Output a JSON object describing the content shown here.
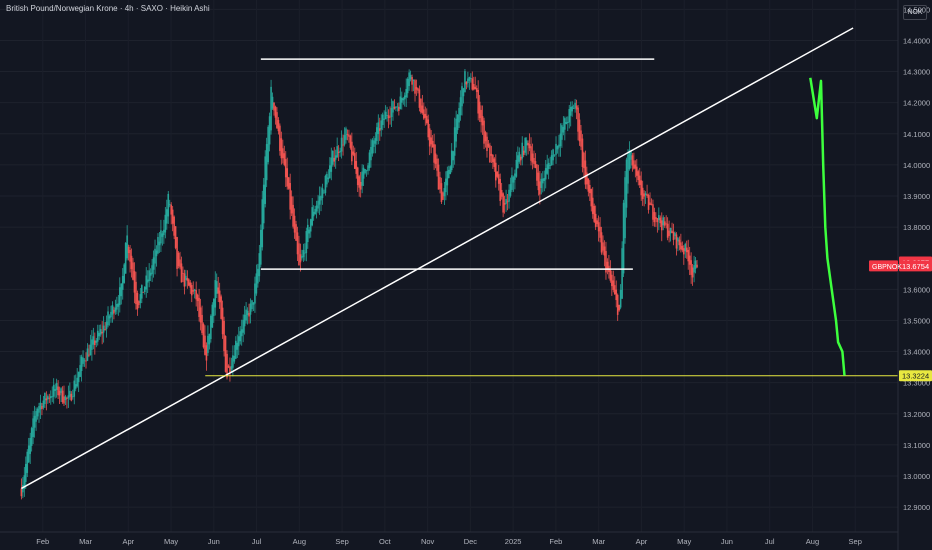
{
  "header": {
    "title": "British Pound/Norwegian Krone · 4h · SAXO · Heikin Ashi",
    "currency_button": "NOK"
  },
  "colors": {
    "background": "#131722",
    "up": "#26a69a",
    "down": "#ef5350",
    "projection": "#3dff3d",
    "support": "#e8e840",
    "lines": "#ffffff",
    "axis_text": "#b2b5be",
    "label_red": "#f23645"
  },
  "chart_data": {
    "type": "candlestick",
    "symbol": "GBPNOK",
    "ylim": [
      12.82,
      14.53
    ],
    "y_ticks": [
      "14.5000",
      "14.4000",
      "14.3000",
      "14.2000",
      "14.1000",
      "14.0000",
      "13.9000",
      "13.8000",
      "13.6000",
      "13.5000",
      "13.4000",
      "13.3000",
      "13.2000",
      "13.1000",
      "13.0000",
      "12.9000"
    ],
    "x_ticks": [
      "Feb",
      "Mar",
      "Apr",
      "May",
      "Jun",
      "Jul",
      "Aug",
      "Sep",
      "Oct",
      "Nov",
      "Dec",
      "2025",
      "Feb",
      "Mar",
      "Apr",
      "May",
      "Jun",
      "Jul",
      "Aug",
      "Sep"
    ],
    "x_tick_pos": [
      0.5,
      1.5,
      2.5,
      3.5,
      4.5,
      5.5,
      6.5,
      7.5,
      8.5,
      9.5,
      10.5,
      11.5,
      12.5,
      13.5,
      14.5,
      15.5,
      16.5,
      17.5,
      18.5,
      19.5
    ],
    "x_range": [
      -0.5,
      20.5
    ],
    "price_keypoints": [
      [
        0.0,
        12.96
      ],
      [
        0.35,
        13.22
      ],
      [
        0.8,
        13.28
      ],
      [
        1.1,
        13.24
      ],
      [
        1.45,
        13.38
      ],
      [
        1.9,
        13.47
      ],
      [
        2.35,
        13.6
      ],
      [
        2.45,
        13.79
      ],
      [
        2.7,
        13.55
      ],
      [
        3.0,
        13.65
      ],
      [
        3.35,
        13.82
      ],
      [
        3.45,
        13.9
      ],
      [
        3.65,
        13.66
      ],
      [
        4.1,
        13.57
      ],
      [
        4.3,
        13.36
      ],
      [
        4.55,
        13.65
      ],
      [
        4.8,
        13.32
      ],
      [
        5.1,
        13.47
      ],
      [
        5.4,
        13.55
      ],
      [
        5.55,
        13.68
      ],
      [
        5.65,
        13.92
      ],
      [
        5.85,
        14.25
      ],
      [
        6.0,
        14.1
      ],
      [
        6.25,
        13.9
      ],
      [
        6.5,
        13.66
      ],
      [
        6.8,
        13.85
      ],
      [
        7.0,
        13.9
      ],
      [
        7.3,
        14.03
      ],
      [
        7.6,
        14.1
      ],
      [
        7.9,
        13.93
      ],
      [
        8.3,
        14.1
      ],
      [
        8.55,
        14.17
      ],
      [
        8.85,
        14.2
      ],
      [
        9.1,
        14.3
      ],
      [
        9.35,
        14.18
      ],
      [
        9.6,
        14.05
      ],
      [
        9.85,
        13.88
      ],
      [
        10.1,
        14.07
      ],
      [
        10.35,
        14.28
      ],
      [
        10.6,
        14.25
      ],
      [
        10.8,
        14.1
      ],
      [
        11.05,
        13.98
      ],
      [
        11.3,
        13.85
      ],
      [
        11.6,
        14.02
      ],
      [
        11.85,
        14.08
      ],
      [
        12.1,
        13.92
      ],
      [
        12.4,
        14.03
      ],
      [
        12.7,
        14.13
      ],
      [
        12.95,
        14.2
      ],
      [
        13.15,
        13.98
      ],
      [
        13.4,
        13.82
      ],
      [
        13.7,
        13.66
      ],
      [
        13.9,
        13.56
      ],
      [
        14.0,
        13.52
      ],
      [
        14.1,
        13.95
      ],
      [
        14.2,
        14.05
      ],
      [
        14.45,
        13.92
      ],
      [
        14.75,
        13.85
      ],
      [
        15.05,
        13.8
      ],
      [
        15.35,
        13.75
      ],
      [
        15.6,
        13.71
      ],
      [
        15.7,
        13.64
      ],
      [
        15.8,
        13.69
      ]
    ],
    "annotations": {
      "range_top": {
        "x": [
          5.6,
          14.8
        ],
        "y": 14.34
      },
      "range_bottom": {
        "x": [
          5.6,
          14.3
        ],
        "y": 13.665
      },
      "trendline": {
        "x": [
          0.0,
          19.45
        ],
        "y": [
          12.96,
          14.44
        ]
      },
      "support": {
        "x": [
          4.3,
          20.5
        ],
        "y": 13.3224
      },
      "projection": [
        [
          18.45,
          14.28
        ],
        [
          18.6,
          14.15
        ],
        [
          18.7,
          14.27
        ],
        [
          18.75,
          14.0
        ],
        [
          18.8,
          13.8
        ],
        [
          18.85,
          13.7
        ],
        [
          18.95,
          13.6
        ],
        [
          19.05,
          13.5
        ],
        [
          19.1,
          13.43
        ],
        [
          19.2,
          13.4
        ],
        [
          19.25,
          13.3224
        ]
      ]
    },
    "price_labels": {
      "last_price": "13.6877",
      "symbol_price": "13.6754",
      "support_label": "13.3224"
    }
  }
}
